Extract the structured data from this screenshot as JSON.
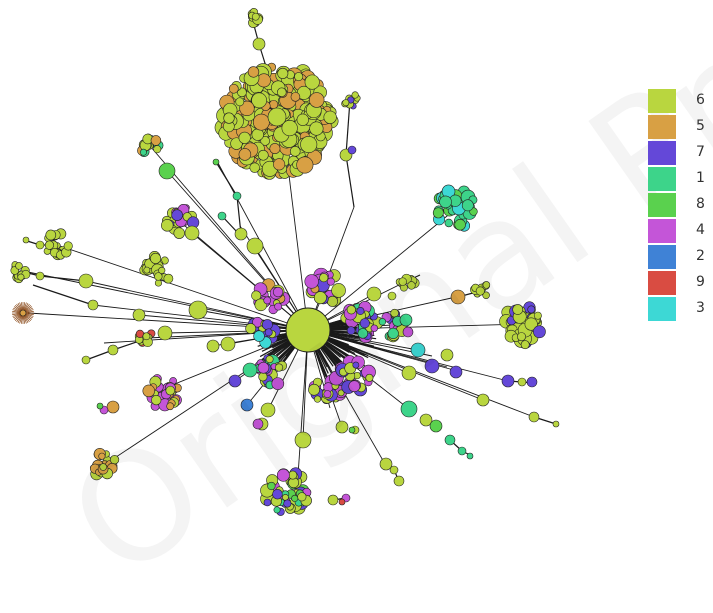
{
  "palette": {
    "6": "#b9d63f",
    "5": "#d8a044",
    "7": "#6448d8",
    "1": "#3dd48a",
    "8": "#5ad14e",
    "4": "#c455d8",
    "2": "#3f82d6",
    "9": "#d94c42",
    "3": "#3dd8d5"
  },
  "legend": [
    {
      "label": "6",
      "color": "#b9d63f"
    },
    {
      "label": "5",
      "color": "#d8a044"
    },
    {
      "label": "7",
      "color": "#6448d8"
    },
    {
      "label": "1",
      "color": "#3dd48a"
    },
    {
      "label": "8",
      "color": "#5ad14e"
    },
    {
      "label": "4",
      "color": "#c455d8"
    },
    {
      "label": "2",
      "color": "#3f82d6"
    },
    {
      "label": "9",
      "color": "#d94c42"
    },
    {
      "label": "3",
      "color": "#3dd8d5"
    }
  ],
  "watermark_text": "Original Pro"
}
